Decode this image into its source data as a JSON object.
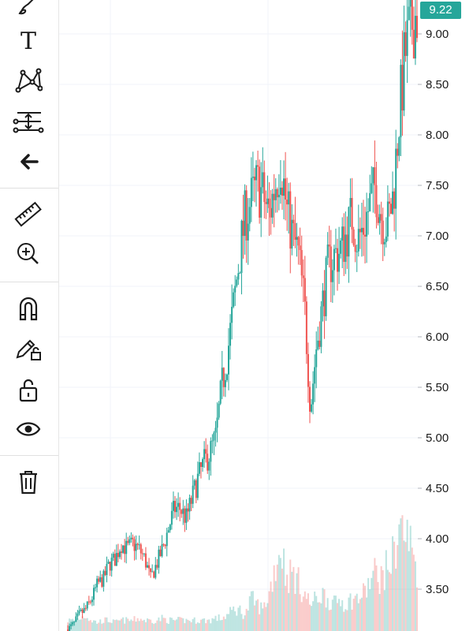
{
  "toolbar": {
    "items": [
      {
        "icon": "brush-icon"
      },
      {
        "icon": "text-icon",
        "glyph": "T"
      },
      {
        "icon": "pattern-icon"
      },
      {
        "icon": "fib-retracement-icon"
      },
      {
        "icon": "back-arrow-icon"
      },
      {
        "icon": "ruler-icon"
      },
      {
        "icon": "zoom-in-icon"
      },
      {
        "icon": "magnet-icon"
      },
      {
        "icon": "lock-drawing-icon"
      },
      {
        "icon": "unlock-icon"
      },
      {
        "icon": "eye-icon"
      },
      {
        "icon": "trash-icon"
      }
    ]
  },
  "price_axis": {
    "last_price": "9.22",
    "last_price_color": "#26a69a",
    "ticks": [
      "9.00",
      "8.50",
      "8.00",
      "7.50",
      "7.00",
      "6.50",
      "6.00",
      "5.50",
      "5.00",
      "4.50",
      "4.00",
      "3.50"
    ]
  },
  "chart_data": {
    "type": "candlestick",
    "up_color": "#26a69a",
    "down_color": "#ef5350",
    "ylim": [
      3.1,
      9.3
    ],
    "grid": true,
    "close_path": [
      3.1,
      3.15,
      3.25,
      3.3,
      3.4,
      3.55,
      3.6,
      3.75,
      3.8,
      3.95,
      3.9,
      3.95,
      3.9,
      3.8,
      3.6,
      3.75,
      3.9,
      4.1,
      4.3,
      4.3,
      4.2,
      4.4,
      4.6,
      4.75,
      4.85,
      5.0,
      5.5,
      5.85,
      6.3,
      6.8,
      7.2,
      7.35,
      7.5,
      7.4,
      7.2,
      7.5,
      7.75,
      7.25,
      7.0,
      6.8,
      6.3,
      5.3,
      5.9,
      6.3,
      6.7,
      6.8,
      6.85,
      7.0,
      7.2,
      6.95,
      7.1,
      7.3,
      7.5,
      7.2,
      7.1,
      7.4,
      8.2,
      8.8,
      9.1,
      9.22
    ],
    "volume_path": [
      0.1,
      0.1,
      0.12,
      0.15,
      0.1,
      0.08,
      0.1,
      0.1,
      0.08,
      0.1,
      0.1,
      0.1,
      0.12,
      0.1,
      0.1,
      0.1,
      0.12,
      0.1,
      0.1,
      0.1,
      0.1,
      0.1,
      0.1,
      0.1,
      0.1,
      0.12,
      0.12,
      0.15,
      0.2,
      0.2,
      0.15,
      0.3,
      0.25,
      0.2,
      0.35,
      0.6,
      0.8,
      0.5,
      0.55,
      0.45,
      0.35,
      0.25,
      0.3,
      0.35,
      0.3,
      0.25,
      0.3,
      0.25,
      0.3,
      0.3,
      0.35,
      0.45,
      0.55,
      0.5,
      0.6,
      0.7,
      1.0,
      0.9,
      0.8,
      0.6
    ]
  }
}
